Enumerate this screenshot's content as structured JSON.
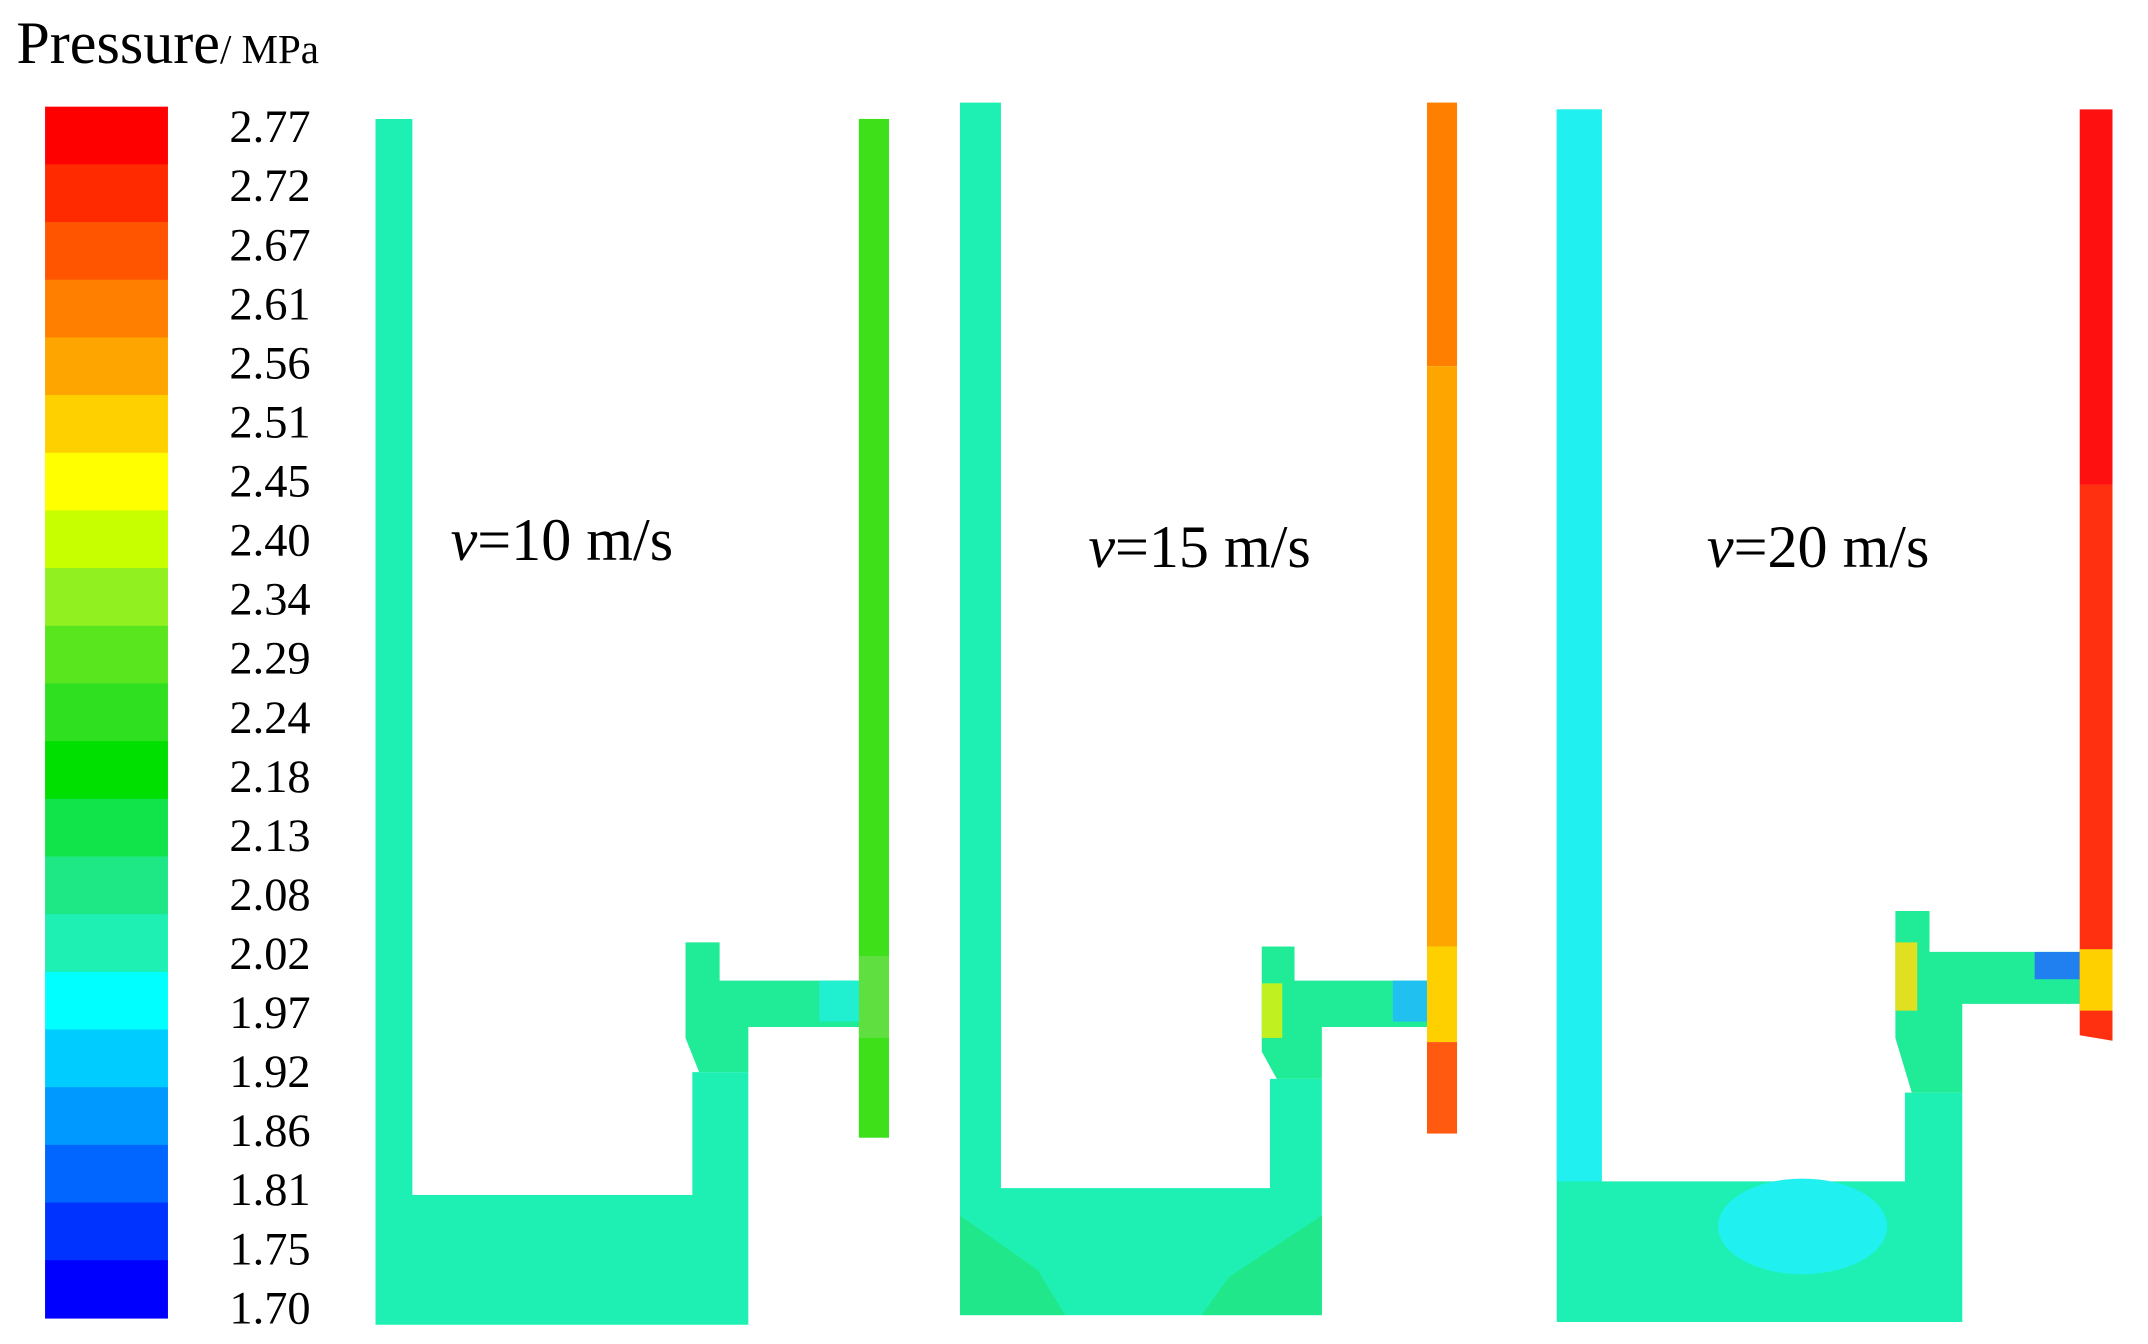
{
  "legend": {
    "title": "Pressure",
    "unit": "/ MPa",
    "labels": [
      "2.77",
      "2.72",
      "2.67",
      "2.61",
      "2.56",
      "2.51",
      "2.45",
      "2.40",
      "2.34",
      "2.29",
      "2.24",
      "2.18",
      "2.13",
      "2.08",
      "2.02",
      "1.97",
      "1.92",
      "1.86",
      "1.81",
      "1.75",
      "1.70"
    ],
    "colors": [
      "#ff0000",
      "#ff2a00",
      "#ff5500",
      "#ff7f00",
      "#ffa500",
      "#ffd000",
      "#ffff00",
      "#c8ff00",
      "#90f020",
      "#5ae61e",
      "#2ee020",
      "#00e000",
      "#10e44a",
      "#1ee886",
      "#1ef0b4",
      "#00ffff",
      "#00ccff",
      "#0099ff",
      "#0066ff",
      "#0033ff",
      "#0000ff"
    ]
  },
  "panels": [
    {
      "var": "v",
      "rest": "=10 m/s"
    },
    {
      "var": "v",
      "rest": "=15 m/s"
    },
    {
      "var": "v",
      "rest": "=20 m/s"
    }
  ]
}
